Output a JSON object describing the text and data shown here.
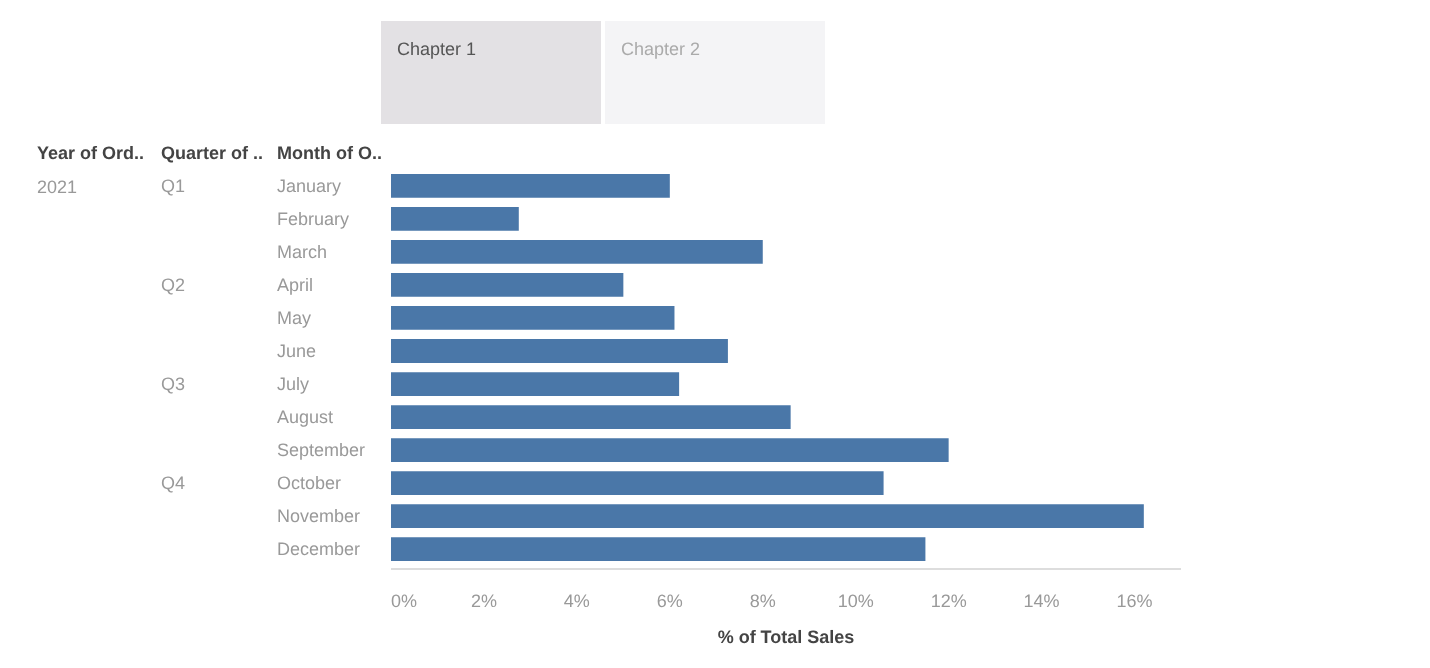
{
  "chart_data": {
    "type": "bar",
    "orientation": "horizontal",
    "xlabel": "% of Total Sales",
    "categories": [
      "January",
      "February",
      "March",
      "April",
      "May",
      "June",
      "July",
      "August",
      "September",
      "October",
      "November",
      "December"
    ],
    "values": [
      6.0,
      2.75,
      8.0,
      5.0,
      6.1,
      7.25,
      6.2,
      8.6,
      12.0,
      10.6,
      16.2,
      11.5
    ],
    "color": "#4a77a8",
    "xlim": [
      0,
      17
    ],
    "xticks": [
      {
        "value": 0,
        "label": "0%"
      },
      {
        "value": 2,
        "label": "2%"
      },
      {
        "value": 4,
        "label": "4%"
      },
      {
        "value": 6,
        "label": "6%"
      },
      {
        "value": 8,
        "label": "8%"
      },
      {
        "value": 10,
        "label": "10%"
      },
      {
        "value": 12,
        "label": "12%"
      },
      {
        "value": 14,
        "label": "14%"
      },
      {
        "value": 16,
        "label": "16%"
      }
    ],
    "grid": false,
    "annotations": [
      "Year of Ord..",
      "Quarter of ..",
      "Month of O..",
      "2021",
      "Chapter 1",
      "Chapter 2",
      "Q1",
      "Q2",
      "Q3",
      "Q4"
    ]
  }
}
